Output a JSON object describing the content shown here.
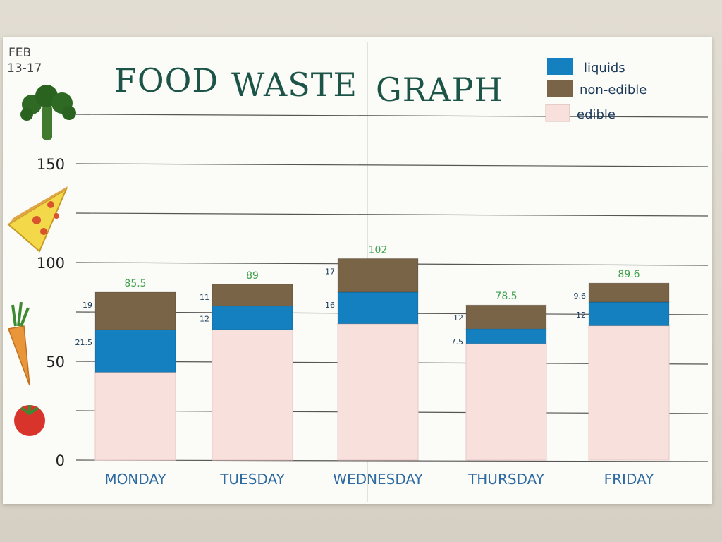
{
  "poster": {
    "date_line1": "FEB",
    "date_line2": "13-17"
  },
  "colors": {
    "liquids": "#1480bf",
    "non_edible": "#7a6447",
    "edible": "#f8e0dd",
    "title": "#1c5548",
    "day_labels": "#2c6aa0",
    "totals": "#3ea04c"
  },
  "chart_data": {
    "type": "bar",
    "stacked": true,
    "title_words": [
      "FOOD",
      "WASTE",
      "GRAPH"
    ],
    "title": "FOOD WASTE GRAPH",
    "xlabel": "",
    "ylabel": "",
    "ylim": [
      0,
      175
    ],
    "yticks": [
      0,
      50,
      100,
      150
    ],
    "gridlines": [
      25,
      50,
      75,
      100,
      125,
      150,
      175
    ],
    "legend_position": "top-right",
    "legend": [
      "liquids",
      "non-edible",
      "edible"
    ],
    "categories": [
      "MONDAY",
      "TUESDAY",
      "WEDNESDAY",
      "THURSDAY",
      "FRIDAY"
    ],
    "series": [
      {
        "name": "edible",
        "values": [
          44.5,
          66,
          69,
          59,
          68
        ]
      },
      {
        "name": "liquids",
        "values": [
          21.5,
          12,
          16,
          7.5,
          12
        ]
      },
      {
        "name": "non-edible",
        "values": [
          19,
          11,
          17,
          12,
          9.6
        ]
      }
    ],
    "segment_labels": {
      "liquids": [
        "21.5",
        "12",
        "16",
        "7.5",
        "12"
      ],
      "non-edible": [
        "19",
        "11",
        "17",
        "12",
        "9.6"
      ]
    },
    "totals": [
      "85.5",
      "89",
      "102",
      "78.5",
      "89.6"
    ]
  }
}
